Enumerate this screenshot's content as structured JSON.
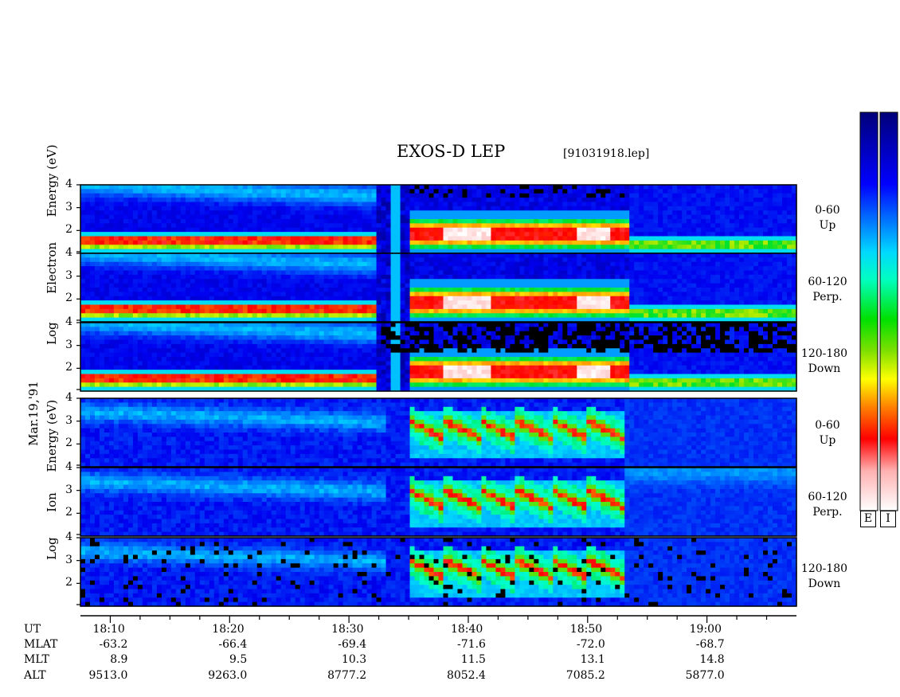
{
  "chart_data": {
    "type": "heatmap",
    "title": "EXOS-D LEP",
    "subtitle": "[91031918.lep]",
    "date_label": "Mar.19,'91",
    "groups": [
      {
        "name": "Electron",
        "ylabel_words": [
          "Log",
          "Electron",
          "Energy",
          "(eV)"
        ],
        "panels": [
          {
            "label_line1": "0-60",
            "label_line2": "Up"
          },
          {
            "label_line1": "60-120",
            "label_line2": "Perp."
          },
          {
            "label_line1": "120-180",
            "label_line2": "Down"
          }
        ]
      },
      {
        "name": "Ion",
        "ylabel_words": [
          "Log",
          "Ion",
          "Energy",
          "(eV)"
        ],
        "panels": [
          {
            "label_line1": "0-60",
            "label_line2": "Up"
          },
          {
            "label_line1": "60-120",
            "label_line2": "Perp."
          },
          {
            "label_line1": "120-180",
            "label_line2": "Down"
          }
        ]
      }
    ],
    "ylim": [
      1,
      4
    ],
    "y_ticks": [
      "2",
      "3",
      "4"
    ],
    "x_tick_labels": [
      "18:10",
      "18:20",
      "18:30",
      "18:40",
      "18:50",
      "19:00"
    ],
    "x_major_minutes": [
      10,
      20,
      30,
      40,
      50,
      60
    ],
    "xlim_minutes": [
      7.5,
      67.5
    ],
    "colorbar_labels": [
      "E",
      "I"
    ],
    "orbit_rows": [
      {
        "name": "UT",
        "values": []
      },
      {
        "name": "MLAT",
        "values": [
          "-63.2",
          "-66.4",
          "-69.4",
          "-71.6",
          "-72.0",
          "-68.7"
        ]
      },
      {
        "name": "MLT",
        "values": [
          "8.9",
          "9.5",
          "10.3",
          "11.5",
          "13.1",
          "14.8"
        ]
      },
      {
        "name": "ALT",
        "values": [
          "9513.0",
          "9263.0",
          "8777.2",
          "8052.4",
          "7085.2",
          "5877.0"
        ]
      }
    ],
    "electron_features": {
      "low_band_log_energy": 1.5,
      "gap_start_minute": 32.5,
      "gap_end_minute": 34.5,
      "burst_start_minute": 35,
      "burst_end_minute": 53.5
    },
    "ion_features": {
      "burst_start_minute": 33,
      "burst_end_minute": 53
    }
  }
}
